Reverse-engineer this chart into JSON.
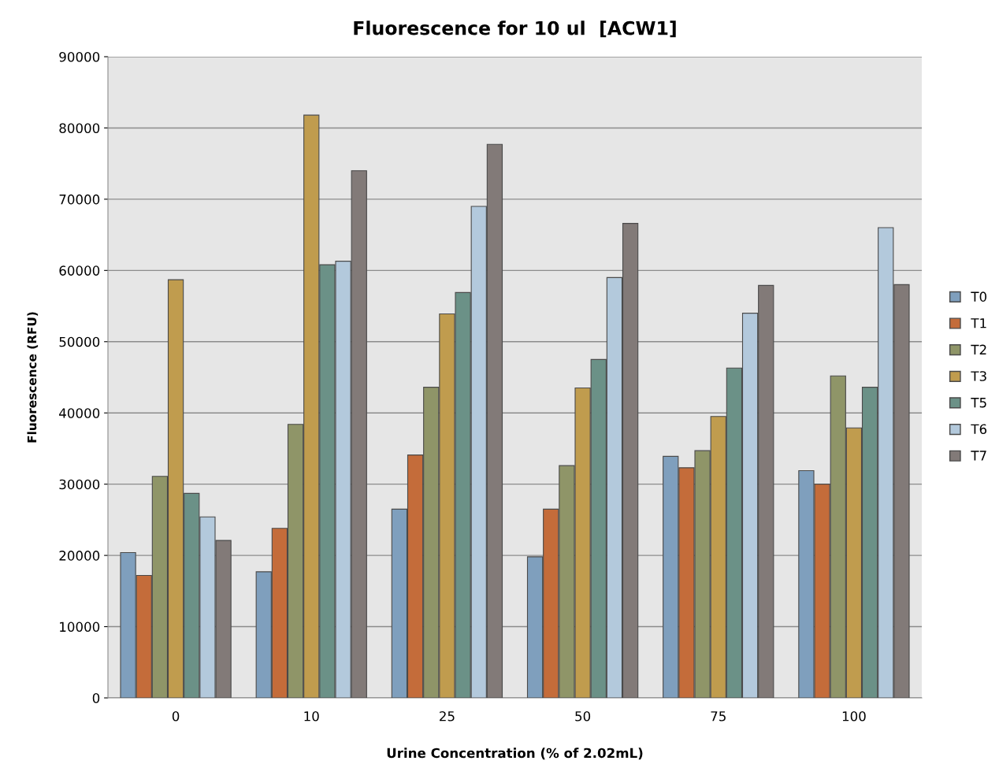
{
  "chart_data": {
    "type": "bar",
    "title": "Fluorescence for 10 ul  [ACW1]",
    "xlabel": "Urine Concentration (% of 2.02mL)",
    "ylabel": "Fluorescence (RFU)",
    "categories": [
      "0",
      "10",
      "25",
      "50",
      "75",
      "100"
    ],
    "series": [
      {
        "name": "T0",
        "color": "#7f9fbd",
        "values": [
          20400,
          17700,
          26500,
          19800,
          33900,
          31900
        ]
      },
      {
        "name": "T1",
        "color": "#c46c3a",
        "values": [
          17200,
          23800,
          34100,
          26500,
          32300,
          30000
        ]
      },
      {
        "name": "T2",
        "color": "#8f9568",
        "values": [
          31100,
          38400,
          43600,
          32600,
          34700,
          45200
        ]
      },
      {
        "name": "T3",
        "color": "#c09c4e",
        "values": [
          58700,
          81800,
          53900,
          43500,
          39500,
          37900
        ]
      },
      {
        "name": "T5",
        "color": "#6b9187",
        "values": [
          28700,
          60800,
          56900,
          47500,
          46300,
          43600
        ]
      },
      {
        "name": "T6",
        "color": "#b3c9dc",
        "values": [
          25400,
          61300,
          69000,
          59000,
          54000,
          66000
        ]
      },
      {
        "name": "T7",
        "color": "#827a78",
        "values": [
          22100,
          74000,
          77700,
          66600,
          57900,
          58000
        ]
      }
    ],
    "ylim": [
      0,
      90000
    ],
    "yticks": [
      0,
      10000,
      20000,
      30000,
      40000,
      50000,
      60000,
      70000,
      80000,
      90000
    ],
    "grid": "y",
    "legend": "right"
  }
}
